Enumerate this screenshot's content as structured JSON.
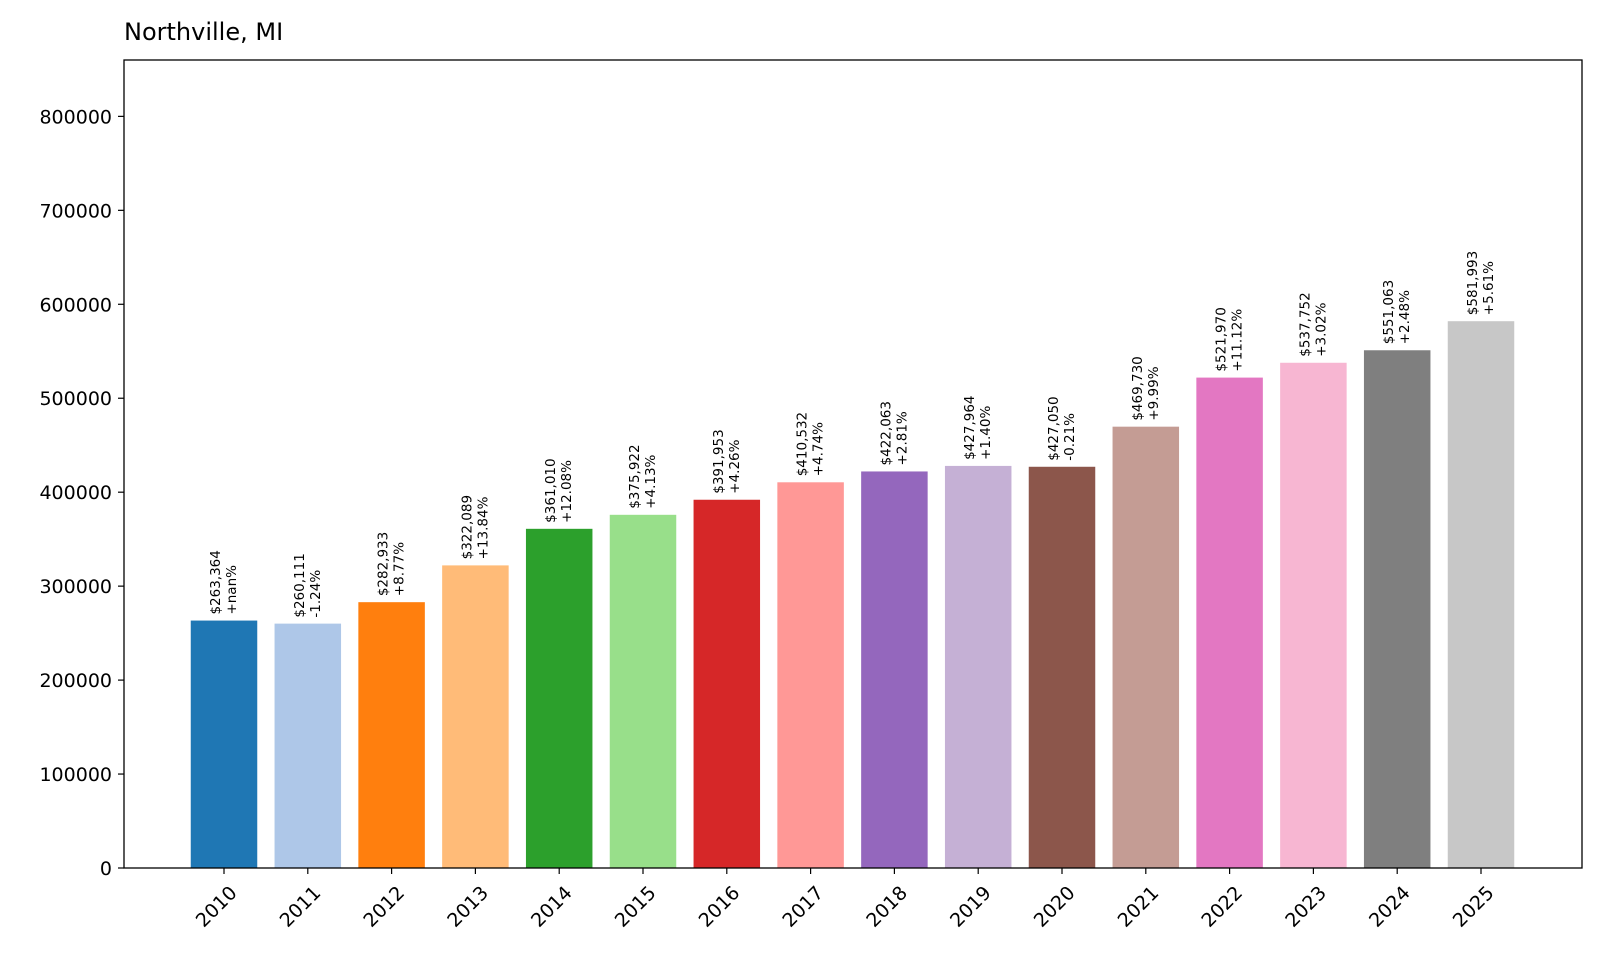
{
  "chart_data": {
    "type": "bar",
    "title": "Northville, MI",
    "xlabel": "",
    "ylabel": "",
    "ylim": [
      0,
      860000
    ],
    "yticks": [
      0,
      100000,
      200000,
      300000,
      400000,
      500000,
      600000,
      700000,
      800000
    ],
    "grid": false,
    "categories": [
      "2010",
      "2011",
      "2012",
      "2013",
      "2014",
      "2015",
      "2016",
      "2017",
      "2018",
      "2019",
      "2020",
      "2021",
      "2022",
      "2023",
      "2024",
      "2025"
    ],
    "values": [
      263364,
      260111,
      282933,
      322089,
      361010,
      375922,
      391953,
      410532,
      422063,
      427964,
      427050,
      469730,
      521970,
      537752,
      551063,
      581993
    ],
    "value_labels": [
      "$263,364",
      "$260,111",
      "$282,933",
      "$322,089",
      "$361,010",
      "$375,922",
      "$391,953",
      "$410,532",
      "$422,063",
      "$427,964",
      "$427,050",
      "$469,730",
      "$521,970",
      "$537,752",
      "$551,063",
      "$581,993"
    ],
    "change_labels": [
      "+nan%",
      "-1.24%",
      "+8.77%",
      "+13.84%",
      "+12.08%",
      "+4.13%",
      "+4.26%",
      "+4.74%",
      "+2.81%",
      "+1.40%",
      "-0.21%",
      "+9.99%",
      "+11.12%",
      "+3.02%",
      "+2.48%",
      "+5.61%"
    ],
    "colors": [
      "#1f77b4",
      "#aec7e8",
      "#ff7f0e",
      "#ffbb78",
      "#2ca02c",
      "#98df8a",
      "#d62728",
      "#ff9896",
      "#9467bd",
      "#c5b0d5",
      "#8c564b",
      "#c49c94",
      "#e377c2",
      "#f7b6d2",
      "#7f7f7f",
      "#c7c7c7"
    ]
  }
}
